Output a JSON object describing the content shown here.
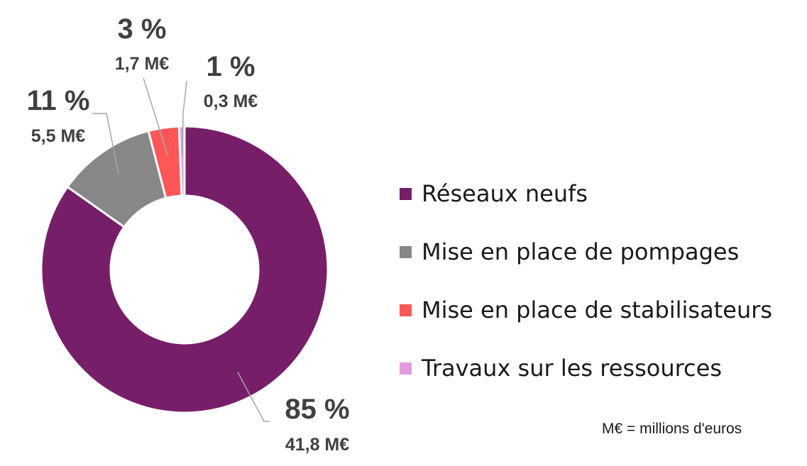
{
  "chart_data": {
    "type": "pie",
    "donut": true,
    "categories": [
      "Réseaux neufs",
      "Mise en place de pompages",
      "Mise en place de stabilisateurs",
      "Travaux sur les ressources"
    ],
    "values": [
      41.8,
      5.5,
      1.7,
      0.3
    ],
    "percent_labels": [
      "85 %",
      "11 %",
      "3 %",
      "1 %"
    ],
    "value_labels": [
      "41,8 M€",
      "5,5 M€",
      "1,7 M€",
      "0,3 M€"
    ],
    "colors": [
      "#771e69",
      "#878787",
      "#ff5757",
      "#e39ade"
    ],
    "legend_position": "right",
    "note": "M€ = millions d'euros"
  }
}
